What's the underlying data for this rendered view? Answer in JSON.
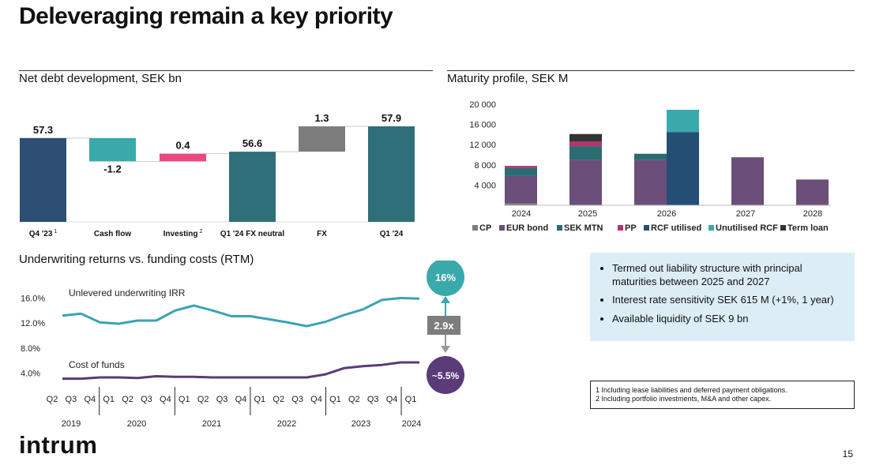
{
  "title": "Deleveraging remain a key priority",
  "page_number": "15",
  "logo": "intrum",
  "colors": {
    "dark_blue": "#2c4f73",
    "teal_light": "#3aa9ab",
    "pink": "#e84a7b",
    "teal_dark": "#2f6f7a",
    "gray": "#7d7d7d",
    "purple": "#6b4e7a",
    "green_bar": "#2b6b72",
    "rcf_blue": "#244e74",
    "unused_rcf": "#3aa9ab",
    "term_loan": "#333333",
    "irr_line": "#3aa3b5",
    "cof_line": "#5b3a78",
    "bubble_irr": "#3aa9ab",
    "bubble_cof": "#5b3a78",
    "gap_box": "#7d7d7d",
    "bullet_bg": "#dcedf6"
  },
  "bullets": [
    "Termed out liability structure with principal maturities between 2025 and 2027",
    "Interest rate sensitivity SEK 615 M (+1%, 1 year)",
    "Available liquidity of SEK 9 bn"
  ],
  "footnotes": [
    "1 Including lease liabilities and deferred payment obligations.",
    "2 Including portfolio investments, M&A and other capex."
  ],
  "chart_data": [
    {
      "type": "waterfall",
      "title": "Net debt development, SEK bn",
      "categories": [
        "Q4 '23",
        "Cash flow",
        "Investing",
        "Q1 '24 FX neutral",
        "FX",
        "Q1 '24"
      ],
      "category_superscripts": [
        "1",
        "",
        "2",
        "",
        "",
        ""
      ],
      "values": [
        57.3,
        -1.2,
        0.4,
        56.6,
        1.3,
        57.9
      ],
      "labels": [
        "57.3",
        "-1.2",
        "0.4",
        "56.6",
        "1.3",
        "57.9"
      ],
      "kinds": [
        "total",
        "delta",
        "delta",
        "total",
        "delta",
        "total"
      ],
      "baseline": 53.0,
      "ylim": [
        53.0,
        58.5
      ]
    },
    {
      "type": "stacked_bar",
      "title": "Maturity profile, SEK M",
      "ylim": [
        0,
        20000
      ],
      "yticks": [
        "4 000",
        "8 000",
        "12 000",
        "16 000",
        "20 000"
      ],
      "ytick_values": [
        4000,
        8000,
        12000,
        16000,
        20000
      ],
      "x_groups": [
        "2024",
        "2025",
        "2026",
        "2027",
        "2028"
      ],
      "bars": [
        {
          "year": "2024",
          "segments": [
            {
              "series": "CP",
              "value": 400
            },
            {
              "series": "EUR bond",
              "value": 5400
            },
            {
              "series": "SEK MTN",
              "value": 1600
            },
            {
              "series": "PP",
              "value": 400
            }
          ]
        },
        {
          "year": "2025",
          "segments": [
            {
              "series": "EUR bond",
              "value": 9000
            },
            {
              "series": "SEK MTN",
              "value": 2700
            },
            {
              "series": "PP",
              "value": 900
            },
            {
              "series": "Term loan",
              "value": 1500
            }
          ]
        },
        {
          "year": "2026",
          "segments": [
            {
              "series": "EUR bond",
              "value": 9000
            },
            {
              "series": "SEK MTN",
              "value": 1200
            }
          ]
        },
        {
          "year": "2026",
          "segments": [
            {
              "series": "RCF utilised",
              "value": 14500
            },
            {
              "series": "Unutilised RCF",
              "value": 4400
            }
          ]
        },
        {
          "year": "2027",
          "segments": [
            {
              "series": "EUR bond",
              "value": 9500
            }
          ]
        },
        {
          "year": "2028",
          "segments": [
            {
              "series": "EUR bond",
              "value": 5100
            }
          ]
        }
      ],
      "legend": [
        "CP",
        "EUR bond",
        "SEK MTN",
        "PP",
        "RCF utilised",
        "Unutilised RCF",
        "Term loan"
      ],
      "legend_colors": [
        "#7d7d7d",
        "#6b4e7a",
        "#2b6b72",
        "#b5346d",
        "#244e74",
        "#3aa9ab",
        "#333333"
      ]
    },
    {
      "type": "line",
      "title": "Underwriting returns vs. funding costs (RTM)",
      "ylim": [
        0.02,
        0.18
      ],
      "yticks": [
        "4.0%",
        "8.0%",
        "12.0%",
        "16.0%"
      ],
      "ytick_values": [
        0.04,
        0.08,
        0.12,
        0.16
      ],
      "x": [
        "Q2",
        "Q3",
        "Q4",
        "Q1",
        "Q2",
        "Q3",
        "Q4",
        "Q1",
        "Q2",
        "Q3",
        "Q4",
        "Q1",
        "Q2",
        "Q3",
        "Q4",
        "Q1",
        "Q2",
        "Q3",
        "Q4",
        "Q1"
      ],
      "year_labels": [
        "2019",
        "2020",
        "2021",
        "2022",
        "2023",
        "2024"
      ],
      "series": [
        {
          "name": "Unlevered underwriting IRR",
          "values": [
            0.132,
            0.135,
            0.121,
            0.119,
            0.124,
            0.124,
            0.14,
            0.148,
            0.14,
            0.131,
            0.131,
            0.126,
            0.121,
            0.115,
            0.122,
            0.133,
            0.142,
            0.157,
            0.16,
            0.159
          ]
        },
        {
          "name": "Cost of funds",
          "values": [
            0.031,
            0.031,
            0.033,
            0.033,
            0.032,
            0.035,
            0.034,
            0.034,
            0.033,
            0.033,
            0.033,
            0.033,
            0.033,
            0.033,
            0.038,
            0.048,
            0.051,
            0.053,
            0.057,
            0.057
          ]
        }
      ],
      "annotations": {
        "irr_end": "16%",
        "cof_end": "~5.5%",
        "gap": "2.9x"
      }
    }
  ]
}
